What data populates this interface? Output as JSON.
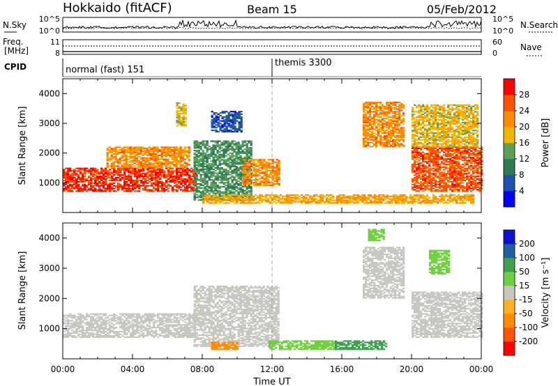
{
  "header": {
    "title": "Hokkaido (fitACF)",
    "beam": "Beam 15",
    "date": "05/Feb/2012"
  },
  "panels": {
    "nsky_label": "N.Sky",
    "nsearch_label": "N.Search",
    "freq_label_1": "Freq.",
    "freq_label_2": "[MHz]",
    "nave_label": "Nave",
    "cpid_label": "CPID",
    "nsky_ticks": [
      "10^5",
      "10^0"
    ],
    "nsearch_ticks": [
      "10^5",
      "10^0"
    ],
    "freq_ticks": [
      "11",
      "8"
    ],
    "nave_ticks": [
      "60",
      "0"
    ]
  },
  "cpid": {
    "segments": [
      {
        "label": "normal (fast) 151",
        "start_hour": 0,
        "end_hour": 12
      },
      {
        "label": "themis 3300",
        "start_hour": 12,
        "end_hour": 24
      }
    ]
  },
  "colors": {
    "power": [
      "#0000ff",
      "#1f4fb0",
      "#2f7a55",
      "#5aa05a",
      "#f2b600",
      "#ff8a00",
      "#ff5000",
      "#ff0000"
    ],
    "velocity": [
      "#ff0000",
      "#ff5500",
      "#ff8c00",
      "#ffb020",
      "#c8c8c0",
      "#70d040",
      "#3ca050",
      "#2060a0",
      "#1010d0"
    ]
  },
  "chart_data": [
    {
      "type": "heatmap",
      "panel": "power",
      "ylabel": "Slant Range [km]",
      "xlim": [
        "00:00",
        "24:00"
      ],
      "ylim": [
        0,
        4500
      ],
      "yticks": [
        "1000",
        "2000",
        "3000",
        "4000"
      ],
      "colorbar_label": "Power [dB]",
      "colorbar_ticks": [
        "4",
        "8",
        "12",
        "16",
        "20",
        "24",
        "28"
      ],
      "regions": [
        {
          "t": [
            0.0,
            7.6
          ],
          "r": [
            700,
            1500
          ],
          "value": 28
        },
        {
          "t": [
            2.5,
            7.2
          ],
          "r": [
            1500,
            2200
          ],
          "value": 22
        },
        {
          "t": [
            6.5,
            7.0
          ],
          "r": [
            2900,
            3700
          ],
          "value": 18
        },
        {
          "t": [
            7.5,
            10.8
          ],
          "r": [
            400,
            2400
          ],
          "value": 12
        },
        {
          "t": [
            8.5,
            10.2
          ],
          "r": [
            2700,
            3400
          ],
          "value": 6
        },
        {
          "t": [
            10.3,
            12.4
          ],
          "r": [
            900,
            1800
          ],
          "value": 22
        },
        {
          "t": [
            8.0,
            23.6
          ],
          "r": [
            300,
            600
          ],
          "value": 20
        },
        {
          "t": [
            17.2,
            19.6
          ],
          "r": [
            2200,
            3700
          ],
          "value": 22
        },
        {
          "t": [
            20.0,
            24.0
          ],
          "r": [
            700,
            2200
          ],
          "value": 26
        },
        {
          "t": [
            20.0,
            23.8
          ],
          "r": [
            2200,
            3600
          ],
          "value": 18
        }
      ]
    },
    {
      "type": "heatmap",
      "panel": "velocity",
      "ylabel": "Slant Range [km]",
      "xlabel": "Time UT",
      "xlim": [
        "00:00",
        "24:00"
      ],
      "ylim": [
        0,
        4500
      ],
      "xticks": [
        "00:00",
        "04:00",
        "08:00",
        "12:00",
        "16:00",
        "20:00",
        "00:00"
      ],
      "yticks": [
        "1000",
        "2000",
        "3000",
        "4000"
      ],
      "colorbar_label": "Velocity [m s⁻¹]",
      "colorbar_ticks": [
        "-200",
        "-100",
        "-50",
        "-15",
        "15",
        "50",
        "100",
        "200"
      ],
      "regions": [
        {
          "t": [
            0.0,
            7.6
          ],
          "r": [
            700,
            1500
          ],
          "value": 0
        },
        {
          "t": [
            7.5,
            12.4
          ],
          "r": [
            400,
            2400
          ],
          "value": 0
        },
        {
          "t": [
            8.5,
            10.0
          ],
          "r": [
            300,
            550
          ],
          "value": -60
        },
        {
          "t": [
            11.8,
            15.6
          ],
          "r": [
            300,
            600
          ],
          "value": 30
        },
        {
          "t": [
            15.6,
            18.6
          ],
          "r": [
            300,
            600
          ],
          "value": 70
        },
        {
          "t": [
            17.2,
            19.6
          ],
          "r": [
            2000,
            3700
          ],
          "value": 0
        },
        {
          "t": [
            20.0,
            24.0
          ],
          "r": [
            700,
            2200
          ],
          "value": 0
        },
        {
          "t": [
            21.0,
            22.2
          ],
          "r": [
            2800,
            3600
          ],
          "value": 30
        },
        {
          "t": [
            17.5,
            18.4
          ],
          "r": [
            3900,
            4300
          ],
          "value": 30
        }
      ]
    }
  ]
}
